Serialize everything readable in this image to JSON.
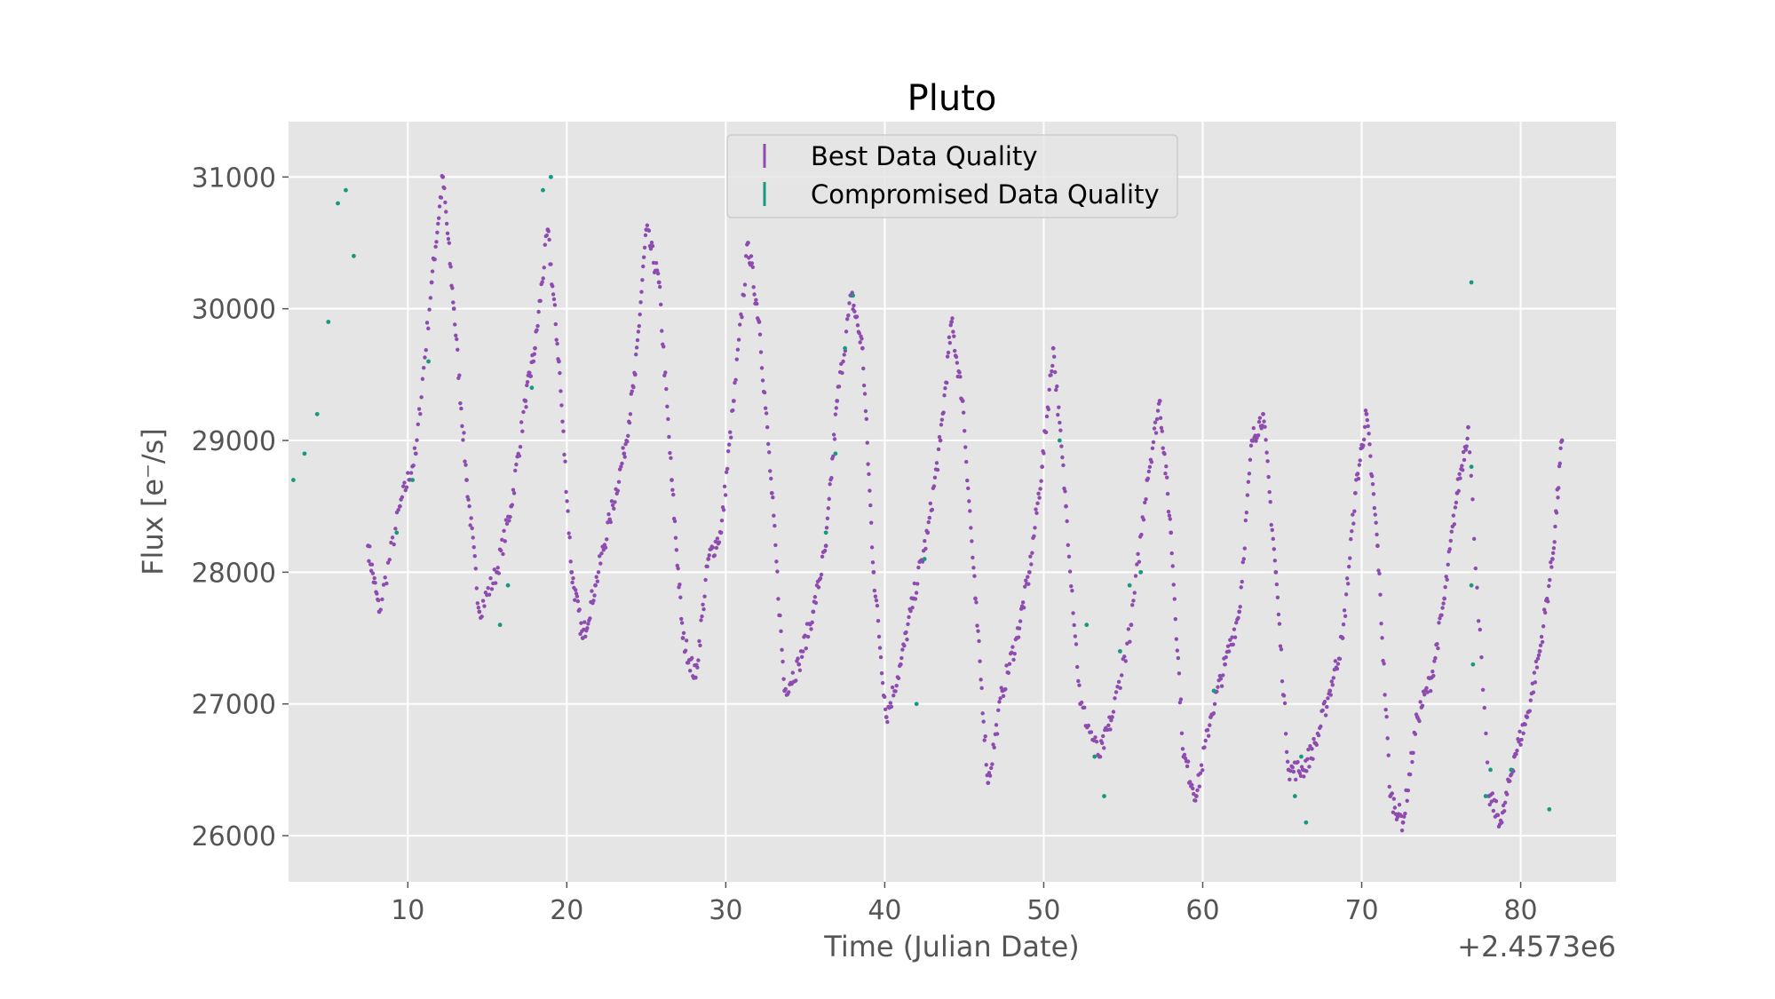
{
  "chart_data": {
    "type": "scatter",
    "title": "Pluto",
    "xlabel": "Time (Julian Date)",
    "ylabel": "Flux [e⁻/s]",
    "x_offset_label": "+2.4573e6",
    "xlim": [
      2.5,
      86
    ],
    "ylim": [
      25650,
      31420
    ],
    "x_ticks": [
      10,
      20,
      30,
      40,
      50,
      60,
      70,
      80
    ],
    "y_ticks": [
      26000,
      27000,
      28000,
      29000,
      30000,
      31000
    ],
    "grid": true,
    "legend_position": "top-center",
    "period_days": 6.387,
    "series": [
      {
        "name": "Best Data Quality",
        "color": "#8e4bb0",
        "points": [
          [
            7.5,
            28200
          ],
          [
            8.2,
            27700
          ],
          [
            9.5,
            28500
          ],
          [
            10.5,
            28900
          ],
          [
            11.5,
            30200
          ],
          [
            12.2,
            31000
          ],
          [
            12.9,
            30000
          ],
          [
            13.7,
            28700
          ],
          [
            14.5,
            27700
          ],
          [
            15.6,
            28000
          ],
          [
            16.5,
            28500
          ],
          [
            17.4,
            29300
          ],
          [
            18.0,
            29700
          ],
          [
            18.8,
            30600
          ],
          [
            19.5,
            29600
          ],
          [
            20.3,
            28000
          ],
          [
            21.0,
            27500
          ],
          [
            21.8,
            27900
          ],
          [
            22.7,
            28400
          ],
          [
            23.6,
            28900
          ],
          [
            24.3,
            29500
          ],
          [
            25.0,
            30600
          ],
          [
            25.8,
            30200
          ],
          [
            26.6,
            28700
          ],
          [
            27.3,
            27500
          ],
          [
            28.1,
            27200
          ],
          [
            28.9,
            28100
          ],
          [
            29.7,
            28300
          ],
          [
            30.5,
            29300
          ],
          [
            31.4,
            30500
          ],
          [
            32.1,
            29900
          ],
          [
            32.9,
            28600
          ],
          [
            33.7,
            27100
          ],
          [
            34.6,
            27300
          ],
          [
            35.5,
            27700
          ],
          [
            36.3,
            28200
          ],
          [
            37.0,
            29300
          ],
          [
            37.9,
            30100
          ],
          [
            38.6,
            29700
          ],
          [
            39.3,
            28000
          ],
          [
            40.1,
            26900
          ],
          [
            41.0,
            27300
          ],
          [
            41.8,
            27800
          ],
          [
            42.7,
            28300
          ],
          [
            43.5,
            29000
          ],
          [
            44.2,
            29900
          ],
          [
            44.9,
            29300
          ],
          [
            45.7,
            27800
          ],
          [
            46.5,
            26400
          ],
          [
            47.4,
            27100
          ],
          [
            48.3,
            27500
          ],
          [
            49.1,
            28000
          ],
          [
            49.9,
            28800
          ],
          [
            50.6,
            29700
          ],
          [
            51.4,
            28500
          ],
          [
            52.3,
            27000
          ],
          [
            53.5,
            26600
          ],
          [
            54.3,
            26900
          ],
          [
            55.5,
            27600
          ],
          [
            56.5,
            28700
          ],
          [
            57.3,
            29300
          ],
          [
            58.0,
            28300
          ],
          [
            58.8,
            26600
          ],
          [
            59.6,
            26300
          ],
          [
            60.5,
            26900
          ],
          [
            61.4,
            27300
          ],
          [
            62.3,
            27700
          ],
          [
            63.1,
            29000
          ],
          [
            63.8,
            29200
          ],
          [
            64.6,
            28000
          ],
          [
            65.4,
            26500
          ],
          [
            66.3,
            26500
          ],
          [
            67.1,
            26700
          ],
          [
            68.0,
            27100
          ],
          [
            68.8,
            27500
          ],
          [
            69.6,
            28600
          ],
          [
            70.3,
            29200
          ],
          [
            71.0,
            28200
          ],
          [
            71.8,
            26300
          ],
          [
            72.6,
            26100
          ],
          [
            73.5,
            26900
          ],
          [
            74.4,
            27200
          ],
          [
            75.2,
            27800
          ],
          [
            76.0,
            28600
          ],
          [
            76.7,
            29100
          ],
          [
            78.0,
            26300
          ],
          [
            78.8,
            26100
          ],
          [
            79.6,
            26600
          ],
          [
            80.4,
            26900
          ],
          [
            81.2,
            27400
          ],
          [
            82.0,
            28100
          ],
          [
            82.6,
            29000
          ]
        ]
      },
      {
        "name": "Compromised Data Quality",
        "color": "#17987f",
        "points": [
          [
            2.8,
            28700
          ],
          [
            3.5,
            28900
          ],
          [
            4.3,
            29200
          ],
          [
            5.0,
            29900
          ],
          [
            5.6,
            30800
          ],
          [
            6.1,
            30900
          ],
          [
            6.6,
            30400
          ],
          [
            9.3,
            28300
          ],
          [
            10.3,
            28700
          ],
          [
            11.3,
            29600
          ],
          [
            15.8,
            27600
          ],
          [
            16.3,
            27900
          ],
          [
            17.8,
            29400
          ],
          [
            18.5,
            30900
          ],
          [
            19.0,
            31000
          ],
          [
            37.5,
            29700
          ],
          [
            38.0,
            30100
          ],
          [
            36.3,
            28300
          ],
          [
            36.9,
            28900
          ],
          [
            42.5,
            28100
          ],
          [
            51.0,
            29000
          ],
          [
            52.7,
            27600
          ],
          [
            53.2,
            26600
          ],
          [
            53.8,
            26300
          ],
          [
            54.8,
            27400
          ],
          [
            55.4,
            27900
          ],
          [
            56.1,
            28000
          ],
          [
            60.7,
            27100
          ],
          [
            65.8,
            26300
          ],
          [
            66.2,
            26600
          ],
          [
            66.5,
            26100
          ],
          [
            76.9,
            30200
          ],
          [
            76.9,
            28800
          ],
          [
            76.9,
            27900
          ],
          [
            77.0,
            27300
          ],
          [
            77.8,
            26300
          ],
          [
            78.1,
            26500
          ],
          [
            79.4,
            26500
          ],
          [
            42.0,
            27000
          ],
          [
            81.8,
            26200
          ]
        ]
      }
    ]
  }
}
